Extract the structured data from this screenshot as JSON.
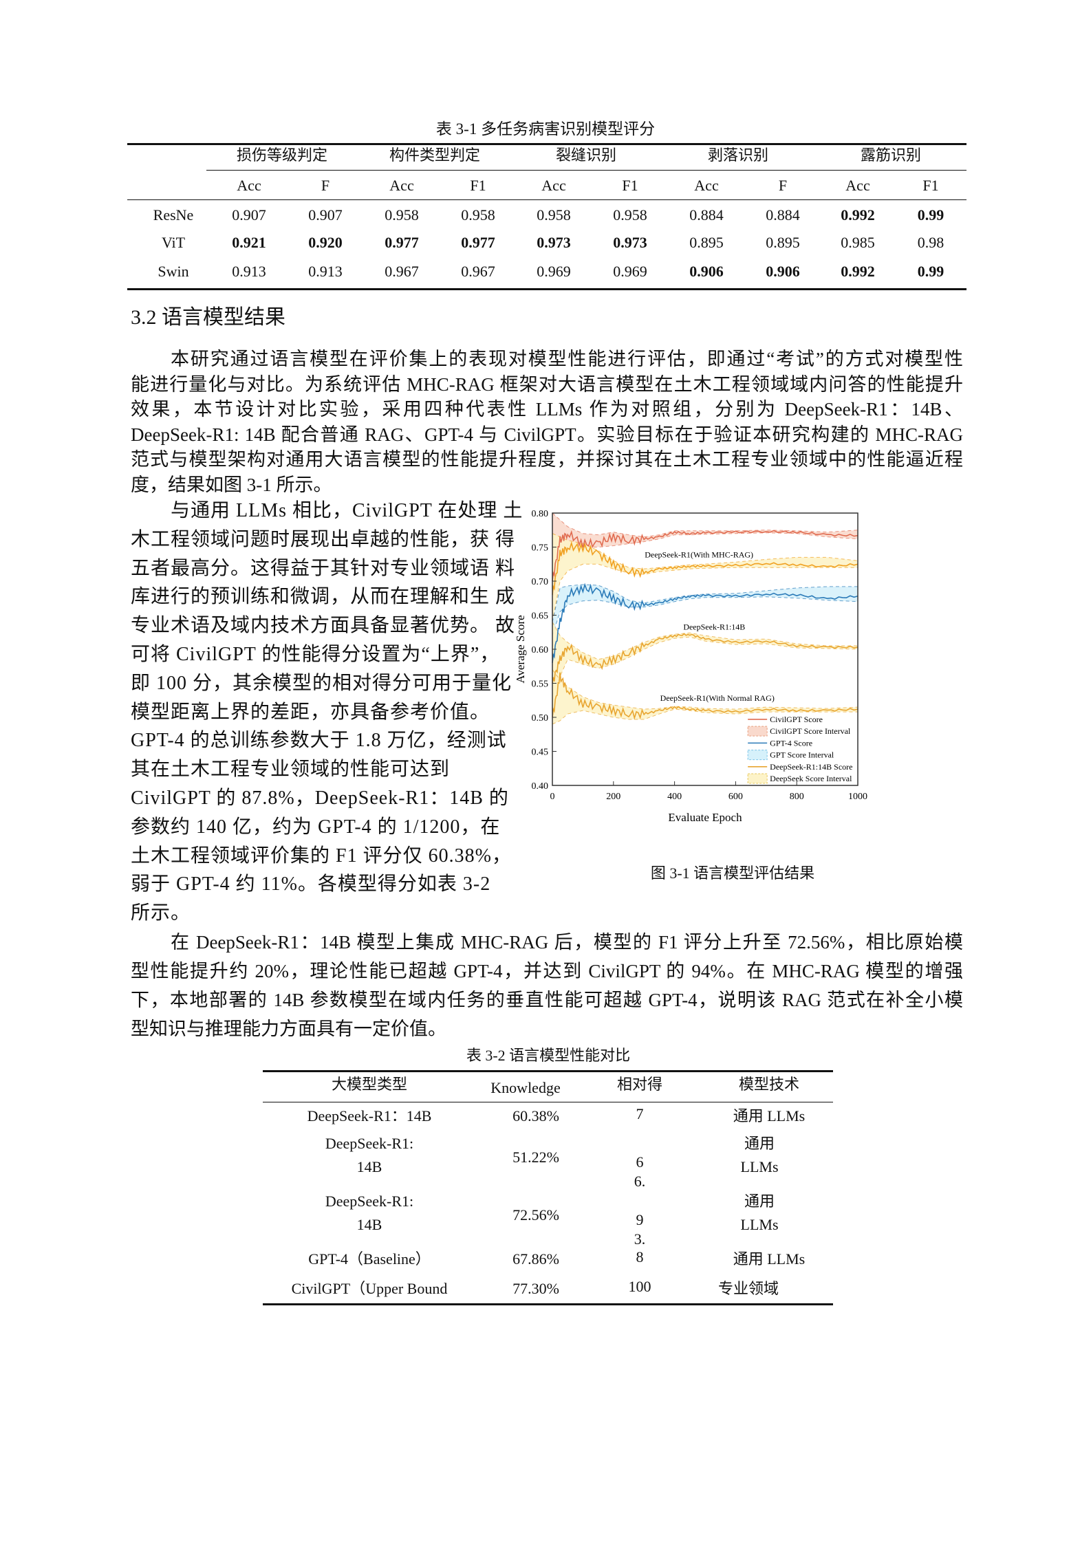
{
  "table1": {
    "caption": "表 3-1  多任务病害识别模型评分",
    "groups": [
      "损伤等级判定",
      "构件类型判定",
      "裂缝识别",
      "剥落识别",
      "露筋识别"
    ],
    "subheaders": [
      "Acc",
      "F",
      "Acc",
      "F1",
      "Acc",
      "F1",
      "Acc",
      "F",
      "Acc",
      "F1"
    ],
    "rows": [
      {
        "name": "ResNe",
        "values": [
          "0.907",
          "0.907",
          "0.958",
          "0.958",
          "0.958",
          "0.958",
          "0.884",
          "0.884",
          "0.992",
          "0.99"
        ],
        "bold": [
          false,
          false,
          false,
          false,
          false,
          false,
          false,
          false,
          true,
          true
        ]
      },
      {
        "name": "ViT",
        "values": [
          "0.921",
          "0.920",
          "0.977",
          "0.977",
          "0.973",
          "0.973",
          "0.895",
          "0.895",
          "0.985",
          "0.98"
        ],
        "bold": [
          true,
          true,
          true,
          true,
          true,
          true,
          false,
          false,
          false,
          false
        ]
      },
      {
        "name": "Swin",
        "values": [
          "0.913",
          "0.913",
          "0.967",
          "0.967",
          "0.969",
          "0.969",
          "0.906",
          "0.906",
          "0.992",
          "0.99"
        ],
        "bold": [
          false,
          false,
          false,
          false,
          false,
          false,
          true,
          true,
          true,
          true
        ]
      }
    ]
  },
  "section": {
    "title": "3.2  语言模型结果"
  },
  "para1": [
    "本研究通过语言模型在评价集上的表现对模型性能进行评估，即通过“考试”的方式对模型性",
    "能进行量化与对比。为系统评估 MHC-RAG 框架对大语言模型在土木工程领域域内问答的性能提升",
    "效果，本节设计对比实验，采用四种代表性 LLMs 作为对照组，分别为 DeepSeek-R1：14B、",
    "DeepSeek-R1: 14B 配合普通 RAG、GPT-4 与 CivilGPT。实验目标在于验证本研究构建的 MHC-RAG",
    "范式与模型架构对通用大语言模型的性能提升程度，并探讨其在土木工程专业领域中的性能逼近程",
    "度，结果如图 3-1 所示。"
  ],
  "para2": [
    "与通用 LLMs 相比，CivilGPT 在处理  土",
    "木工程领域问题时展现出卓越的性能，获  得",
    "五者最高分。这得益于其针对专业领域语  料",
    "库进行的预训练和微调，从而在理解和生  成",
    "专业术语及域内技术方面具备显著优势。  故",
    "可将 CivilGPT 的性能得分设置为“上界”，",
    "即 100 分，其余模型的相对得分可用于量化",
    "模型距离上界的差距，亦具备参考价值。",
    "GPT-4 的总训练参数大于 1.8 万亿，经测试",
    "其在土木工程专业领域的性能可达到",
    "CivilGPT 的 87.8%，DeepSeek-R1：14B 的",
    "参数约 140 亿，约为 GPT-4 的 1/1200，在",
    "土木工程领域评价集的 F1 评分仅 60.38%，",
    "弱于 GPT-4 约 11%。各模型得分如表 3-2",
    "所示。"
  ],
  "para3": [
    "在 DeepSeek-R1：14B 模型上集成 MHC-RAG 后，模型的 F1 评分上升至 72.56%，相比原始模",
    "型性能提升约 20%，理论性能已超越 GPT-4，并达到 CivilGPT 的 94%。在 MHC-RAG 模型的增强",
    "下，本地部署的 14B 参数模型在域内任务的垂直性能可超越 GPT-4，说明该 RAG 范式在补全小模",
    "型知识与推理能力方面具有一定价值。"
  ],
  "figure": {
    "caption": "图 3-1  语言模型评估结果"
  },
  "chart_data": {
    "type": "line",
    "xlabel": "Evaluate Epoch",
    "ylabel": "Average Score",
    "xlim": [
      0,
      1000
    ],
    "ylim": [
      0.4,
      0.8
    ],
    "xticks": [
      0,
      200,
      400,
      600,
      800,
      1000
    ],
    "yticks": [
      "0.40",
      "0.45",
      "0.50",
      "0.55",
      "0.60",
      "0.65",
      "0.70",
      "0.75",
      "0.80"
    ],
    "legend_position": "bottom-right",
    "grid": false,
    "x": [
      0,
      25,
      50,
      100,
      150,
      200,
      250,
      300,
      350,
      400,
      450,
      500,
      600,
      700,
      800,
      900,
      1000
    ],
    "series": [
      {
        "key": "civilgpt",
        "color": "#e06b50",
        "fill": "#f9d9cc",
        "values": [
          0.7,
          0.76,
          0.77,
          0.755,
          0.755,
          0.765,
          0.76,
          0.762,
          0.765,
          0.772,
          0.77,
          0.771,
          0.772,
          0.773,
          0.772,
          0.768,
          0.767
        ],
        "upper": [
          0.8,
          0.79,
          0.78,
          0.77,
          0.768,
          0.772,
          0.768,
          0.765,
          0.768,
          0.774,
          0.774,
          0.774,
          0.774,
          0.775,
          0.774,
          0.772,
          0.775
        ],
        "lower": [
          0.67,
          0.73,
          0.745,
          0.75,
          0.75,
          0.752,
          0.755,
          0.758,
          0.762,
          0.768,
          0.768,
          0.769,
          0.77,
          0.771,
          0.77,
          0.765,
          0.762
        ]
      },
      {
        "key": "mhc-rag",
        "color": "#f0a020",
        "fill": "#fdf3c8",
        "values": [
          0.68,
          0.74,
          0.75,
          0.75,
          0.74,
          0.725,
          0.715,
          0.712,
          0.718,
          0.72,
          0.722,
          0.722,
          0.723,
          0.726,
          0.724,
          0.721,
          0.725
        ],
        "upper": [
          0.77,
          0.765,
          0.76,
          0.755,
          0.745,
          0.73,
          0.72,
          0.718,
          0.72,
          0.722,
          0.724,
          0.725,
          0.728,
          0.732,
          0.735,
          0.735,
          0.73
        ],
        "lower": [
          0.64,
          0.7,
          0.715,
          0.725,
          0.725,
          0.718,
          0.712,
          0.71,
          0.714,
          0.716,
          0.718,
          0.719,
          0.72,
          0.72,
          0.72,
          0.72,
          0.72
        ]
      },
      {
        "key": "gpt4",
        "color": "#2a7ab8",
        "fill": "#d6f1fb",
        "values": [
          0.58,
          0.64,
          0.68,
          0.69,
          0.685,
          0.675,
          0.665,
          0.665,
          0.668,
          0.674,
          0.678,
          0.679,
          0.678,
          0.681,
          0.68,
          0.674,
          0.678
        ],
        "upper": [
          0.64,
          0.69,
          0.693,
          0.695,
          0.694,
          0.685,
          0.672,
          0.668,
          0.672,
          0.676,
          0.679,
          0.681,
          0.682,
          0.686,
          0.69,
          0.692,
          0.692
        ],
        "lower": [
          0.62,
          0.655,
          0.665,
          0.671,
          0.672,
          0.668,
          0.662,
          0.662,
          0.665,
          0.67,
          0.674,
          0.676,
          0.676,
          0.677,
          0.675,
          0.672,
          0.67
        ]
      },
      {
        "key": "14b",
        "color": "#e8a530",
        "fill": "#fdf3c8",
        "values": [
          0.55,
          0.585,
          0.605,
          0.585,
          0.575,
          0.585,
          0.595,
          0.605,
          0.615,
          0.62,
          0.622,
          0.615,
          0.61,
          0.612,
          0.605,
          0.603,
          0.603
        ],
        "upper": [
          0.64,
          0.62,
          0.61,
          0.595,
          0.585,
          0.59,
          0.6,
          0.61,
          0.618,
          0.622,
          0.624,
          0.62,
          0.614,
          0.615,
          0.608,
          0.605,
          0.605
        ],
        "lower": [
          0.5,
          0.56,
          0.585,
          0.578,
          0.572,
          0.578,
          0.588,
          0.6,
          0.61,
          0.616,
          0.618,
          0.612,
          0.607,
          0.608,
          0.602,
          0.601,
          0.6
        ]
      },
      {
        "key": "normal-rag",
        "color": "#e8a530",
        "fill": "#fdf3c8",
        "values": [
          0.5,
          0.56,
          0.54,
          0.52,
          0.515,
          0.51,
          0.505,
          0.505,
          0.51,
          0.515,
          0.512,
          0.51,
          0.508,
          0.512,
          0.51,
          0.51,
          0.512
        ],
        "upper": [
          0.57,
          0.555,
          0.545,
          0.53,
          0.522,
          0.518,
          0.515,
          0.512,
          0.513,
          0.516,
          0.515,
          0.513,
          0.512,
          0.515,
          0.514,
          0.513,
          0.515
        ],
        "lower": [
          0.49,
          0.495,
          0.505,
          0.51,
          0.505,
          0.5,
          0.497,
          0.497,
          0.505,
          0.512,
          0.51,
          0.507,
          0.505,
          0.508,
          0.508,
          0.508,
          0.508
        ]
      }
    ],
    "annotations": [
      {
        "text": "DeepSeek-R1(With MHC-RAG)",
        "x": 480,
        "y": 0.735
      },
      {
        "text": "DeepSeek-R1:14B",
        "x": 530,
        "y": 0.629
      },
      {
        "text": "DeepSeek-R1(With Normal RAG)",
        "x": 540,
        "y": 0.524
      }
    ],
    "legend": [
      {
        "label": "CivilGPT Score",
        "kind": "line",
        "color": "#e06b50"
      },
      {
        "label": "CivilGPT Score Interval",
        "kind": "band",
        "color": "#f9d9cc",
        "edge": "#e8a080"
      },
      {
        "label": "GPT-4 Score",
        "kind": "line",
        "color": "#2a7ab8"
      },
      {
        "label": "GPT Score Interval",
        "kind": "band",
        "color": "#d6f1fb",
        "edge": "#7cc4e8"
      },
      {
        "label": "DeepSeek-R1:14B Score",
        "kind": "line",
        "color": "#e8a530"
      },
      {
        "label": "DeepSeek Score Interval",
        "kind": "band",
        "color": "#fdf3c8",
        "edge": "#e8c860"
      }
    ]
  },
  "table2": {
    "caption": "表 3-2  语言模型性能对比",
    "headers": [
      "大模型类型",
      "Knowledge",
      "相对得",
      "模型技术"
    ],
    "rows": [
      {
        "model": [
          "DeepSeek-R1：14B"
        ],
        "knowledge": "60.38%",
        "relative": [
          "7"
        ],
        "tech": [
          "通用 LLMs"
        ]
      },
      {
        "model": [
          "DeepSeek-R1:",
          "14B"
        ],
        "knowledge": "51.22%",
        "relative": [
          "6",
          "6."
        ],
        "tech": [
          "通用",
          "LLMs"
        ]
      },
      {
        "model": [
          "DeepSeek-R1:",
          "14B"
        ],
        "knowledge": "72.56%",
        "relative": [
          "9",
          "3."
        ],
        "tech": [
          "通用",
          "LLMs"
        ]
      },
      {
        "model": [
          "GPT-4（Baseline）"
        ],
        "knowledge": "67.86%",
        "relative": [
          "8"
        ],
        "tech": [
          "通用 LLMs"
        ]
      },
      {
        "model": [
          "CivilGPT（Upper Bound"
        ],
        "knowledge": "77.30%",
        "relative": [
          "100"
        ],
        "tech": [
          "专业领域"
        ]
      }
    ]
  }
}
